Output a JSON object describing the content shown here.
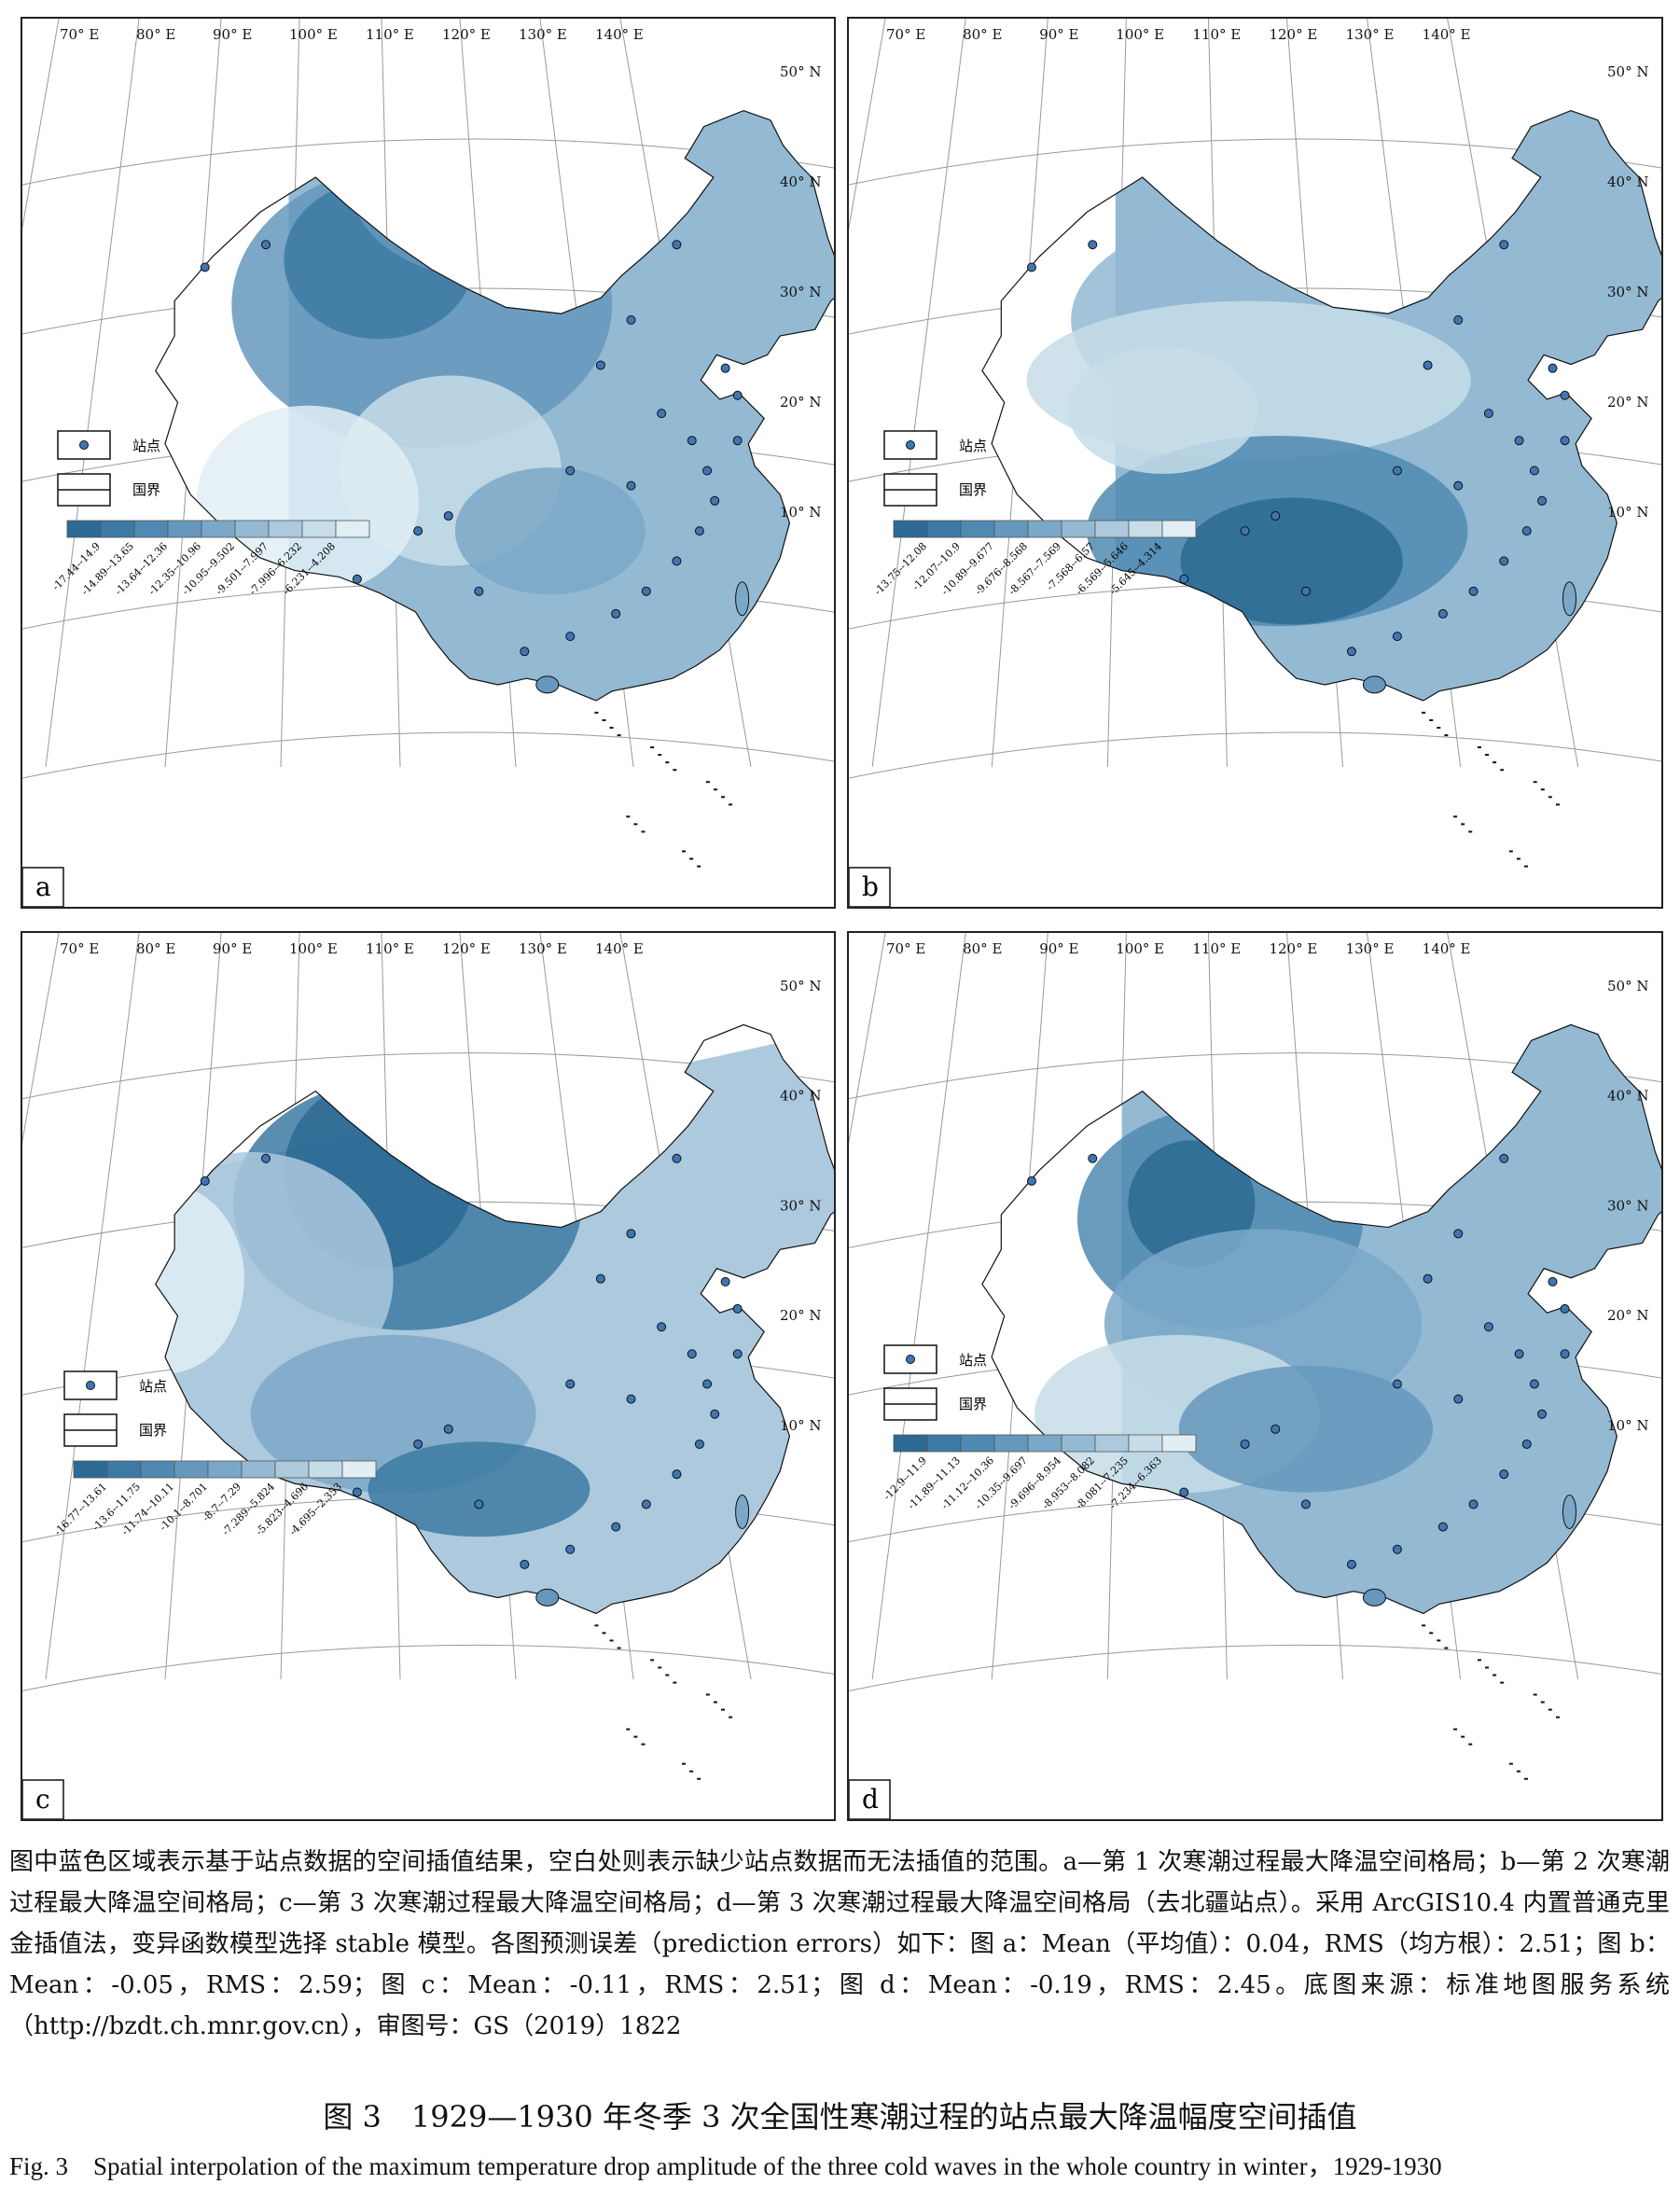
{
  "panels": [
    {
      "letter": "a",
      "legend_station": "站点",
      "legend_border": "国界",
      "classes": [
        "-17.44--14.9",
        "-14.89--13.65",
        "-13.64--12.36",
        "-12.35--10.96",
        "-10.95--9.502",
        "-9.501--7.997",
        "-7.996--6.232",
        "-6.231--4.208"
      ],
      "colors": [
        "#2d6a93",
        "#3d7aa3",
        "#4f89b1",
        "#6598bc",
        "#7ba8c8",
        "#93b9d3",
        "#acc9dd",
        "#c7dde8",
        "#e1eef4"
      ]
    },
    {
      "letter": "b",
      "legend_station": "站点",
      "legend_border": "国界",
      "classes": [
        "-13.75--12.08",
        "-12.07--10.9",
        "-10.89--9.677",
        "-9.676--8.568",
        "-8.567--7.569",
        "-7.568--6.57",
        "-6.569--5.646",
        "-5.645--4.314"
      ],
      "colors": [
        "#2d6a93",
        "#3d7aa3",
        "#4f89b1",
        "#6598bc",
        "#7ba8c8",
        "#93b9d3",
        "#acc9dd",
        "#c7dde8",
        "#e1eef4"
      ]
    },
    {
      "letter": "c",
      "legend_station": "站点",
      "legend_border": "国界",
      "classes": [
        "-16.77--13.61",
        "-13.6--11.75",
        "-11.74--10.11",
        "-10.1--8.701",
        "-8.7--7.29",
        "-7.289--5.824",
        "-5.823--4.696",
        "-4.695--2.353"
      ],
      "colors": [
        "#2d6a93",
        "#3d7aa3",
        "#4f89b1",
        "#6598bc",
        "#7ba8c8",
        "#93b9d3",
        "#acc9dd",
        "#c7dde8",
        "#e1eef4"
      ]
    },
    {
      "letter": "d",
      "legend_station": "站点",
      "legend_border": "国界",
      "classes": [
        "-12.9--11.9",
        "-11.89--11.13",
        "-11.12--10.36",
        "-10.35--9.697",
        "-9.696--8.954",
        "-8.953--8.082",
        "-8.081--7.235",
        "-7.234--6.363"
      ],
      "colors": [
        "#2d6a93",
        "#3d7aa3",
        "#4f89b1",
        "#6598bc",
        "#7ba8c8",
        "#93b9d3",
        "#acc9dd",
        "#c7dde8",
        "#e1eef4"
      ]
    }
  ],
  "map_labels": {
    "lon": [
      "70° E",
      "80° E",
      "90° E",
      "100° E",
      "110° E",
      "120° E",
      "130° E",
      "140° E"
    ],
    "lat": [
      "50° N",
      "40° N",
      "30° N",
      "20° N",
      "10° N"
    ]
  },
  "caption": {
    "text": "图中蓝色区域表示基于站点数据的空间插值结果，空白处则表示缺少站点数据而无法插值的范围。a—第 1 次寒潮过程最大降温空间格局；b—第 2 次寒潮过程最大降温空间格局；c—第 3 次寒潮过程最大降温空间格局；d—第 3 次寒潮过程最大降温空间格局（去北疆站点）。采用 ArcGIS10.4 内置普通克里金插值法，变异函数模型选择 stable 模型。各图预测误差（prediction errors）如下：图 a：Mean（平均值）：0.04，RMS（均方根）：2.51；图 b：Mean：-0.05，RMS：2.59；图 c：Mean：-0.11，RMS：2.51；图 d：Mean：-0.19，RMS：2.45。底图来源：标准地图服务系统（http://bzdt.ch.mnr.gov.cn），审图号：GS（2019）1822",
    "title_cn": "图 3　1929—1930 年冬季 3 次全国性寒潮过程的站点最大降温幅度空间插值",
    "title_en": "Fig. 3　Spatial interpolation of the maximum temperature drop amplitude of the three cold waves in the whole country in winter，1929-1930"
  }
}
